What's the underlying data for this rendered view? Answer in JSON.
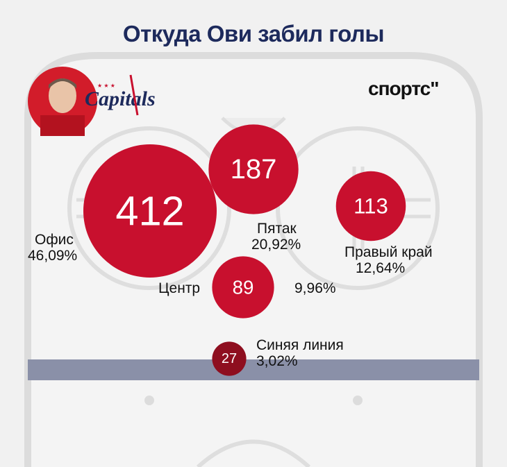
{
  "title": "Откуда Ови забил голы",
  "brand": "спортс\"",
  "team_logo_text": "Capitals",
  "chart_data": {
    "type": "bubble",
    "title": "Откуда Ови забил голы",
    "points": [
      {
        "zone": "Офис",
        "goals": 412,
        "percent": "46,09%",
        "color": "#c8102e"
      },
      {
        "zone": "Пятак",
        "goals": 187,
        "percent": "20,92%",
        "color": "#c8102e"
      },
      {
        "zone": "Правый край",
        "goals": 113,
        "percent": "12,64%",
        "color": "#c8102e"
      },
      {
        "zone": "Центр",
        "goals": 89,
        "percent": "9,96%",
        "color": "#c8102e"
      },
      {
        "zone": "Синяя линия",
        "goals": 27,
        "percent": "3,02%",
        "color": "#8e0e1f"
      }
    ],
    "bubble_area_proportional_to": "goals"
  },
  "colors": {
    "bubble": "#c8102e",
    "bubble_dark": "#8e0e1f",
    "blue_line": "#8a90a8",
    "rink_lines": "#d9d9d9",
    "title": "#1d2a5c"
  }
}
